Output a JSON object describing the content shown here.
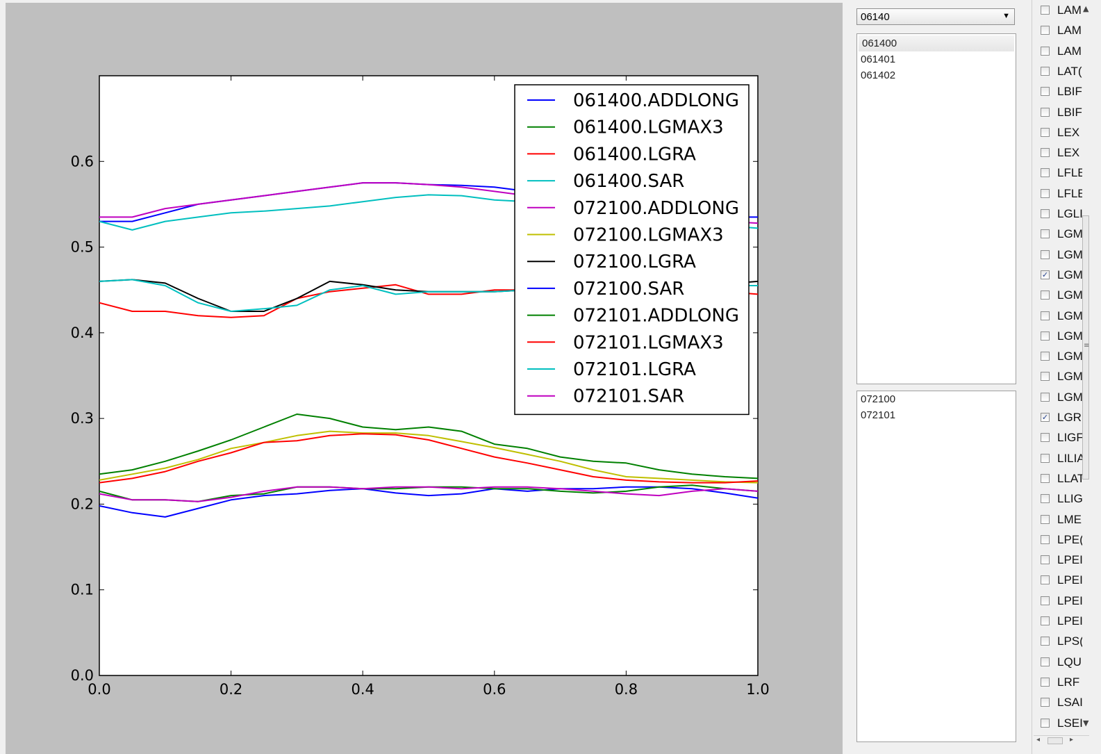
{
  "colors": {
    "blue": "#0000ff",
    "green": "#008000",
    "red": "#ff0000",
    "cyan": "#00bfbf",
    "magenta": "#bf00bf",
    "yellow": "#bfbf00",
    "black": "#000000"
  },
  "chart_data": {
    "type": "line",
    "title": "",
    "xlabel": "",
    "ylabel": "",
    "xlim": [
      0.0,
      1.0
    ],
    "ylim": [
      0.0,
      0.7
    ],
    "x_ticks": [
      "0.0",
      "0.2",
      "0.4",
      "0.6",
      "0.8",
      "1.0"
    ],
    "y_ticks": [
      "0.0",
      "0.1",
      "0.2",
      "0.3",
      "0.4",
      "0.5",
      "0.6"
    ],
    "legend_position": "top-right",
    "grid": false,
    "x": [
      0.0,
      0.05,
      0.1,
      0.15,
      0.2,
      0.25,
      0.3,
      0.35,
      0.4,
      0.45,
      0.5,
      0.55,
      0.6,
      0.65,
      0.7,
      0.75,
      0.8,
      0.85,
      0.9,
      0.95,
      1.0
    ],
    "series": [
      {
        "name": "061400.ADDLONG",
        "color": "#0000ff",
        "values": [
          0.53,
          0.53,
          0.54,
          0.55,
          0.555,
          0.56,
          0.565,
          0.57,
          0.575,
          0.575,
          0.573,
          0.572,
          0.57,
          0.565,
          0.56,
          0.555,
          0.55,
          0.545,
          0.54,
          0.535,
          0.535
        ]
      },
      {
        "name": "061400.LGMAX3",
        "color": "#008000",
        "values": [
          0.235,
          0.24,
          0.25,
          0.262,
          0.275,
          0.29,
          0.305,
          0.3,
          0.29,
          0.287,
          0.29,
          0.285,
          0.27,
          0.265,
          0.255,
          0.25,
          0.248,
          0.24,
          0.235,
          0.232,
          0.23
        ]
      },
      {
        "name": "061400.LGRA",
        "color": "#ff0000",
        "values": [
          0.435,
          0.425,
          0.425,
          0.42,
          0.418,
          0.42,
          0.44,
          0.448,
          0.452,
          0.456,
          0.445,
          0.445,
          0.45,
          0.45,
          0.45,
          0.45,
          0.45,
          0.45,
          0.45,
          0.448,
          0.445
        ]
      },
      {
        "name": "061400.SAR",
        "color": "#00bfbf",
        "values": [
          0.53,
          0.52,
          0.53,
          0.535,
          0.54,
          0.542,
          0.545,
          0.548,
          0.553,
          0.558,
          0.561,
          0.56,
          0.555,
          0.553,
          0.548,
          0.542,
          0.54,
          0.535,
          0.53,
          0.525,
          0.522
        ]
      },
      {
        "name": "072100.ADDLONG",
        "color": "#bf00bf",
        "values": [
          0.535,
          0.535,
          0.545,
          0.55,
          0.555,
          0.56,
          0.565,
          0.57,
          0.575,
          0.575,
          0.573,
          0.57,
          0.565,
          0.56,
          0.555,
          0.55,
          0.545,
          0.54,
          0.535,
          0.53,
          0.528
        ]
      },
      {
        "name": "072100.LGMAX3",
        "color": "#bfbf00",
        "values": [
          0.228,
          0.235,
          0.242,
          0.252,
          0.265,
          0.272,
          0.28,
          0.285,
          0.283,
          0.283,
          0.28,
          0.273,
          0.266,
          0.258,
          0.25,
          0.24,
          0.232,
          0.23,
          0.228,
          0.226,
          0.225
        ]
      },
      {
        "name": "072100.LGRA",
        "color": "#000000",
        "values": [
          0.46,
          0.462,
          0.458,
          0.44,
          0.425,
          0.425,
          0.44,
          0.46,
          0.456,
          0.45,
          0.448,
          0.448,
          0.448,
          0.45,
          0.45,
          0.452,
          0.452,
          0.455,
          0.455,
          0.457,
          0.46
        ]
      },
      {
        "name": "072100.SAR",
        "color": "#0000ff",
        "values": [
          0.198,
          0.19,
          0.185,
          0.195,
          0.205,
          0.21,
          0.212,
          0.216,
          0.218,
          0.213,
          0.21,
          0.212,
          0.218,
          0.215,
          0.218,
          0.218,
          0.22,
          0.22,
          0.218,
          0.213,
          0.207
        ]
      },
      {
        "name": "072101.ADDLONG",
        "color": "#008000",
        "values": [
          0.215,
          0.205,
          0.205,
          0.203,
          0.21,
          0.212,
          0.22,
          0.22,
          0.218,
          0.218,
          0.22,
          0.22,
          0.218,
          0.218,
          0.215,
          0.213,
          0.215,
          0.22,
          0.222,
          0.218,
          0.215
        ]
      },
      {
        "name": "072101.LGMAX3",
        "color": "#ff0000",
        "values": [
          0.225,
          0.23,
          0.238,
          0.25,
          0.26,
          0.272,
          0.274,
          0.28,
          0.282,
          0.281,
          0.275,
          0.265,
          0.255,
          0.248,
          0.24,
          0.232,
          0.228,
          0.226,
          0.225,
          0.225,
          0.227
        ]
      },
      {
        "name": "072101.LGRA",
        "color": "#00bfbf",
        "values": [
          0.46,
          0.462,
          0.455,
          0.435,
          0.425,
          0.428,
          0.432,
          0.45,
          0.455,
          0.445,
          0.448,
          0.448,
          0.448,
          0.45,
          0.45,
          0.45,
          0.45,
          0.452,
          0.452,
          0.455,
          0.455
        ]
      },
      {
        "name": "072101.SAR",
        "color": "#bf00bf",
        "values": [
          0.212,
          0.205,
          0.205,
          0.203,
          0.208,
          0.215,
          0.22,
          0.22,
          0.218,
          0.22,
          0.22,
          0.218,
          0.22,
          0.22,
          0.218,
          0.215,
          0.212,
          0.21,
          0.215,
          0.218,
          0.215
        ]
      }
    ]
  },
  "controls": {
    "prefix_combo_value": "06140",
    "top_list": [
      "061400",
      "061401",
      "061402"
    ],
    "bottom_list": [
      "072100",
      "072101"
    ]
  },
  "checklist": [
    {
      "label": "LAM",
      "checked": false
    },
    {
      "label": "LAM",
      "checked": false
    },
    {
      "label": "LAM",
      "checked": false
    },
    {
      "label": "LAT(",
      "checked": false
    },
    {
      "label": "LBIF",
      "checked": false
    },
    {
      "label": "LBIF",
      "checked": false
    },
    {
      "label": "LEX",
      "checked": false
    },
    {
      "label": "LEX",
      "checked": false
    },
    {
      "label": "LFLE",
      "checked": false
    },
    {
      "label": "LFLE",
      "checked": false
    },
    {
      "label": "LGLI",
      "checked": false
    },
    {
      "label": "LGM",
      "checked": false
    },
    {
      "label": "LGM",
      "checked": false
    },
    {
      "label": "LGM",
      "checked": true
    },
    {
      "label": "LGM",
      "checked": false
    },
    {
      "label": "LGM",
      "checked": false
    },
    {
      "label": "LGM",
      "checked": false
    },
    {
      "label": "LGM",
      "checked": false
    },
    {
      "label": "LGM",
      "checked": false
    },
    {
      "label": "LGM",
      "checked": false
    },
    {
      "label": "LGR",
      "checked": true
    },
    {
      "label": "LIGF",
      "checked": false
    },
    {
      "label": "LILIA",
      "checked": false
    },
    {
      "label": "LLAT",
      "checked": false
    },
    {
      "label": "LLIG",
      "checked": false
    },
    {
      "label": "LME",
      "checked": false
    },
    {
      "label": "LPE(",
      "checked": false
    },
    {
      "label": "LPEI",
      "checked": false
    },
    {
      "label": "LPEI",
      "checked": false
    },
    {
      "label": "LPEI",
      "checked": false
    },
    {
      "label": "LPEI",
      "checked": false
    },
    {
      "label": "LPS(",
      "checked": false
    },
    {
      "label": "LQU",
      "checked": false
    },
    {
      "label": "LRF",
      "checked": false
    },
    {
      "label": "LSAI",
      "checked": false
    },
    {
      "label": "LSEI",
      "checked": false
    }
  ]
}
